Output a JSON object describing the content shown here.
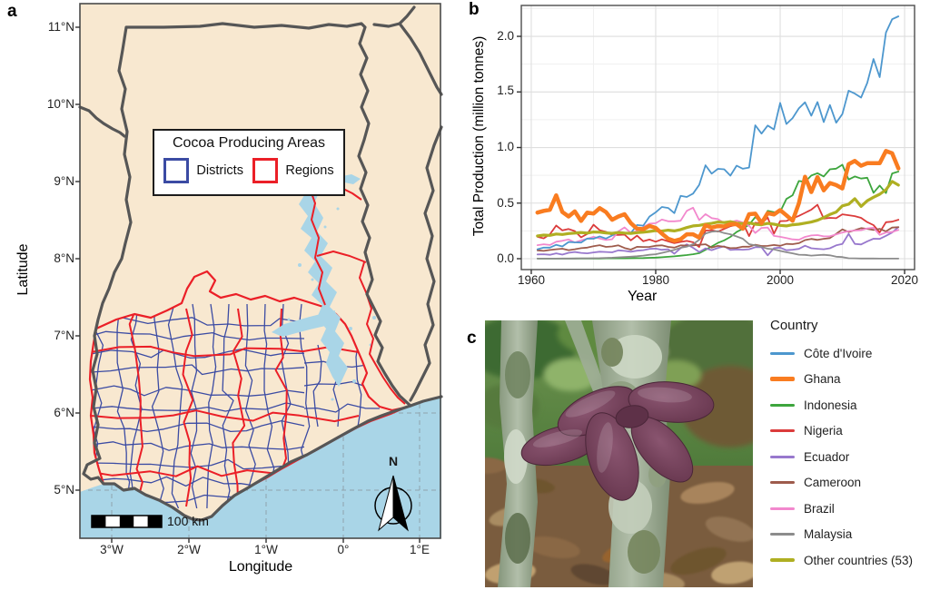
{
  "figure": {
    "panel_a": {
      "label": "a",
      "map": {
        "xlabel": "Longitude",
        "ylabel": "Latitude",
        "xticks": [
          "3°W",
          "2°W",
          "1°W",
          "0°",
          "1°E"
        ],
        "yticks": [
          "5°N",
          "6°N",
          "7°N",
          "8°N",
          "9°N",
          "10°N",
          "11°N"
        ],
        "legend": {
          "title": "Cocoa Producing Areas",
          "items": [
            {
              "label": "Districts",
              "color": "#3B4BA3"
            },
            {
              "label": "Regions",
              "color": "#EB1F27"
            }
          ]
        },
        "scale_bar_label": "100 km",
        "north_label": "N",
        "colors": {
          "land": "#F8E8D0",
          "water": "#A9D5E7",
          "country_border": "#565656",
          "districts": "#3B4BA3",
          "regions": "#EB1F27",
          "gridline": "#8FA3AC"
        }
      }
    },
    "panel_b": {
      "label": "b"
    },
    "panel_c": {
      "label": "c"
    }
  },
  "chart_data": {
    "type": "line",
    "title": "",
    "xlabel": "Year",
    "ylabel": "Total Production (million tonnes)",
    "legend_title": "Country",
    "legend_position": "right",
    "grid": true,
    "xlim": [
      1958.4,
      2021.6
    ],
    "ylim": [
      -0.098,
      2.278
    ],
    "xticks": [
      1960,
      1980,
      2000,
      2020
    ],
    "yticks": [
      0.0,
      0.5,
      1.0,
      1.5,
      2.0
    ],
    "xtick_labels": [
      "1960",
      "1980",
      "2000",
      "2020"
    ],
    "ytick_labels": [
      "0.0",
      "0.5",
      "1.0",
      "1.5",
      "2.0"
    ],
    "years": [
      1961,
      1962,
      1963,
      1964,
      1965,
      1966,
      1967,
      1968,
      1969,
      1970,
      1971,
      1972,
      1973,
      1974,
      1975,
      1976,
      1977,
      1978,
      1979,
      1980,
      1981,
      1982,
      1983,
      1984,
      1985,
      1986,
      1987,
      1988,
      1989,
      1990,
      1991,
      1992,
      1993,
      1994,
      1995,
      1996,
      1997,
      1998,
      1999,
      2000,
      2001,
      2002,
      2003,
      2004,
      2005,
      2006,
      2007,
      2008,
      2009,
      2010,
      2011,
      2012,
      2013,
      2014,
      2015,
      2016,
      2017,
      2018,
      2019
    ],
    "series": [
      {
        "name": "Côte d'Ivoire",
        "color": "#4D97CE",
        "lw": 1.8,
        "values": [
          0.085,
          0.1,
          0.1,
          0.125,
          0.11,
          0.15,
          0.147,
          0.145,
          0.181,
          0.18,
          0.2,
          0.181,
          0.209,
          0.242,
          0.231,
          0.23,
          0.303,
          0.297,
          0.379,
          0.417,
          0.465,
          0.456,
          0.41,
          0.565,
          0.555,
          0.585,
          0.665,
          0.84,
          0.765,
          0.808,
          0.804,
          0.747,
          0.837,
          0.809,
          0.82,
          1.2,
          1.125,
          1.198,
          1.163,
          1.401,
          1.212,
          1.265,
          1.352,
          1.407,
          1.286,
          1.409,
          1.229,
          1.382,
          1.223,
          1.301,
          1.511,
          1.485,
          1.449,
          1.581,
          1.796,
          1.633,
          2.034,
          2.154,
          2.18
        ]
      },
      {
        "name": "Ghana",
        "color": "#F97C20",
        "lw": 4.5,
        "values": [
          0.415,
          0.43,
          0.44,
          0.57,
          0.42,
          0.38,
          0.425,
          0.34,
          0.415,
          0.406,
          0.455,
          0.42,
          0.35,
          0.38,
          0.4,
          0.32,
          0.27,
          0.265,
          0.295,
          0.277,
          0.225,
          0.18,
          0.16,
          0.175,
          0.22,
          0.22,
          0.19,
          0.3,
          0.28,
          0.293,
          0.29,
          0.31,
          0.31,
          0.27,
          0.4,
          0.405,
          0.32,
          0.41,
          0.398,
          0.437,
          0.39,
          0.341,
          0.497,
          0.737,
          0.599,
          0.734,
          0.615,
          0.681,
          0.662,
          0.632,
          0.85,
          0.879,
          0.836,
          0.859,
          0.859,
          0.859,
          0.969,
          0.948,
          0.812
        ]
      },
      {
        "name": "Indonesia",
        "color": "#3DA53D",
        "lw": 1.8,
        "values": [
          0.001,
          0.001,
          0.001,
          0.001,
          0.001,
          0.001,
          0.002,
          0.002,
          0.002,
          0.002,
          0.002,
          0.003,
          0.003,
          0.003,
          0.003,
          0.004,
          0.005,
          0.006,
          0.008,
          0.01,
          0.013,
          0.017,
          0.021,
          0.027,
          0.033,
          0.04,
          0.05,
          0.08,
          0.11,
          0.142,
          0.165,
          0.196,
          0.24,
          0.27,
          0.305,
          0.374,
          0.33,
          0.43,
          0.418,
          0.421,
          0.537,
          0.571,
          0.699,
          0.691,
          0.748,
          0.769,
          0.74,
          0.804,
          0.81,
          0.845,
          0.712,
          0.74,
          0.721,
          0.728,
          0.593,
          0.658,
          0.59,
          0.767,
          0.784
        ]
      },
      {
        "name": "Nigeria",
        "color": "#DB3B3B",
        "lw": 1.8,
        "values": [
          0.197,
          0.183,
          0.22,
          0.298,
          0.255,
          0.267,
          0.248,
          0.192,
          0.223,
          0.305,
          0.256,
          0.241,
          0.215,
          0.214,
          0.216,
          0.165,
          0.207,
          0.157,
          0.172,
          0.153,
          0.174,
          0.156,
          0.14,
          0.151,
          0.16,
          0.148,
          0.105,
          0.253,
          0.256,
          0.244,
          0.268,
          0.292,
          0.306,
          0.323,
          0.203,
          0.323,
          0.318,
          0.37,
          0.225,
          0.338,
          0.34,
          0.362,
          0.385,
          0.412,
          0.441,
          0.485,
          0.36,
          0.367,
          0.364,
          0.399,
          0.391,
          0.383,
          0.367,
          0.329,
          0.302,
          0.237,
          0.328,
          0.333,
          0.35
        ]
      },
      {
        "name": "Ecuador",
        "color": "#9878CD",
        "lw": 1.8,
        "values": [
          0.038,
          0.04,
          0.035,
          0.048,
          0.037,
          0.053,
          0.06,
          0.052,
          0.048,
          0.056,
          0.063,
          0.06,
          0.057,
          0.075,
          0.07,
          0.063,
          0.072,
          0.077,
          0.088,
          0.091,
          0.08,
          0.085,
          0.045,
          0.095,
          0.13,
          0.098,
          0.06,
          0.093,
          0.077,
          0.097,
          0.111,
          0.078,
          0.083,
          0.081,
          0.085,
          0.103,
          0.103,
          0.03,
          0.095,
          0.1,
          0.076,
          0.081,
          0.088,
          0.117,
          0.094,
          0.089,
          0.085,
          0.094,
          0.12,
          0.132,
          0.224,
          0.133,
          0.128,
          0.156,
          0.18,
          0.178,
          0.206,
          0.235,
          0.284
        ]
      },
      {
        "name": "Cameroon",
        "color": "#9E5B4C",
        "lw": 1.8,
        "values": [
          0.075,
          0.07,
          0.078,
          0.085,
          0.09,
          0.077,
          0.085,
          0.095,
          0.1,
          0.112,
          0.122,
          0.106,
          0.11,
          0.12,
          0.096,
          0.082,
          0.107,
          0.105,
          0.106,
          0.117,
          0.12,
          0.106,
          0.1,
          0.12,
          0.118,
          0.12,
          0.125,
          0.13,
          0.1,
          0.115,
          0.107,
          0.095,
          0.097,
          0.108,
          0.108,
          0.126,
          0.114,
          0.115,
          0.123,
          0.116,
          0.133,
          0.131,
          0.14,
          0.167,
          0.178,
          0.169,
          0.179,
          0.185,
          0.224,
          0.264,
          0.24,
          0.256,
          0.275,
          0.269,
          0.259,
          0.269,
          0.246,
          0.28,
          0.283
        ]
      },
      {
        "name": "Brazil",
        "color": "#F288CD",
        "lw": 1.8,
        "values": [
          0.122,
          0.13,
          0.123,
          0.153,
          0.161,
          0.173,
          0.145,
          0.165,
          0.18,
          0.197,
          0.182,
          0.168,
          0.175,
          0.246,
          0.282,
          0.232,
          0.249,
          0.284,
          0.315,
          0.319,
          0.352,
          0.336,
          0.336,
          0.341,
          0.43,
          0.459,
          0.347,
          0.401,
          0.365,
          0.356,
          0.32,
          0.328,
          0.343,
          0.326,
          0.296,
          0.231,
          0.277,
          0.28,
          0.205,
          0.197,
          0.186,
          0.174,
          0.17,
          0.196,
          0.209,
          0.212,
          0.201,
          0.202,
          0.218,
          0.235,
          0.248,
          0.253,
          0.256,
          0.273,
          0.278,
          0.214,
          0.236,
          0.239,
          0.259
        ]
      },
      {
        "name": "Malaysia",
        "color": "#8C8C8C",
        "lw": 1.8,
        "values": [
          0.001,
          0.001,
          0.001,
          0.001,
          0.002,
          0.002,
          0.002,
          0.003,
          0.003,
          0.004,
          0.005,
          0.007,
          0.009,
          0.012,
          0.015,
          0.018,
          0.022,
          0.028,
          0.035,
          0.04,
          0.052,
          0.065,
          0.08,
          0.098,
          0.108,
          0.131,
          0.17,
          0.227,
          0.243,
          0.247,
          0.23,
          0.22,
          0.2,
          0.18,
          0.131,
          0.12,
          0.106,
          0.09,
          0.084,
          0.07,
          0.058,
          0.048,
          0.036,
          0.034,
          0.028,
          0.032,
          0.035,
          0.03,
          0.018,
          0.015,
          0.004,
          0.003,
          0.002,
          0.002,
          0.002,
          0.001,
          0.001,
          0.001,
          0.001
        ]
      },
      {
        "name": "Other countries (53)",
        "color": "#AFAF22",
        "lw": 3.2,
        "values": [
          0.205,
          0.212,
          0.21,
          0.222,
          0.218,
          0.226,
          0.23,
          0.235,
          0.23,
          0.24,
          0.238,
          0.232,
          0.228,
          0.235,
          0.23,
          0.228,
          0.234,
          0.238,
          0.245,
          0.252,
          0.248,
          0.256,
          0.25,
          0.262,
          0.28,
          0.295,
          0.3,
          0.31,
          0.318,
          0.33,
          0.325,
          0.333,
          0.32,
          0.315,
          0.322,
          0.31,
          0.305,
          0.318,
          0.31,
          0.3,
          0.295,
          0.305,
          0.31,
          0.32,
          0.33,
          0.345,
          0.37,
          0.398,
          0.42,
          0.475,
          0.49,
          0.54,
          0.47,
          0.521,
          0.553,
          0.58,
          0.62,
          0.695,
          0.662
        ]
      }
    ]
  }
}
